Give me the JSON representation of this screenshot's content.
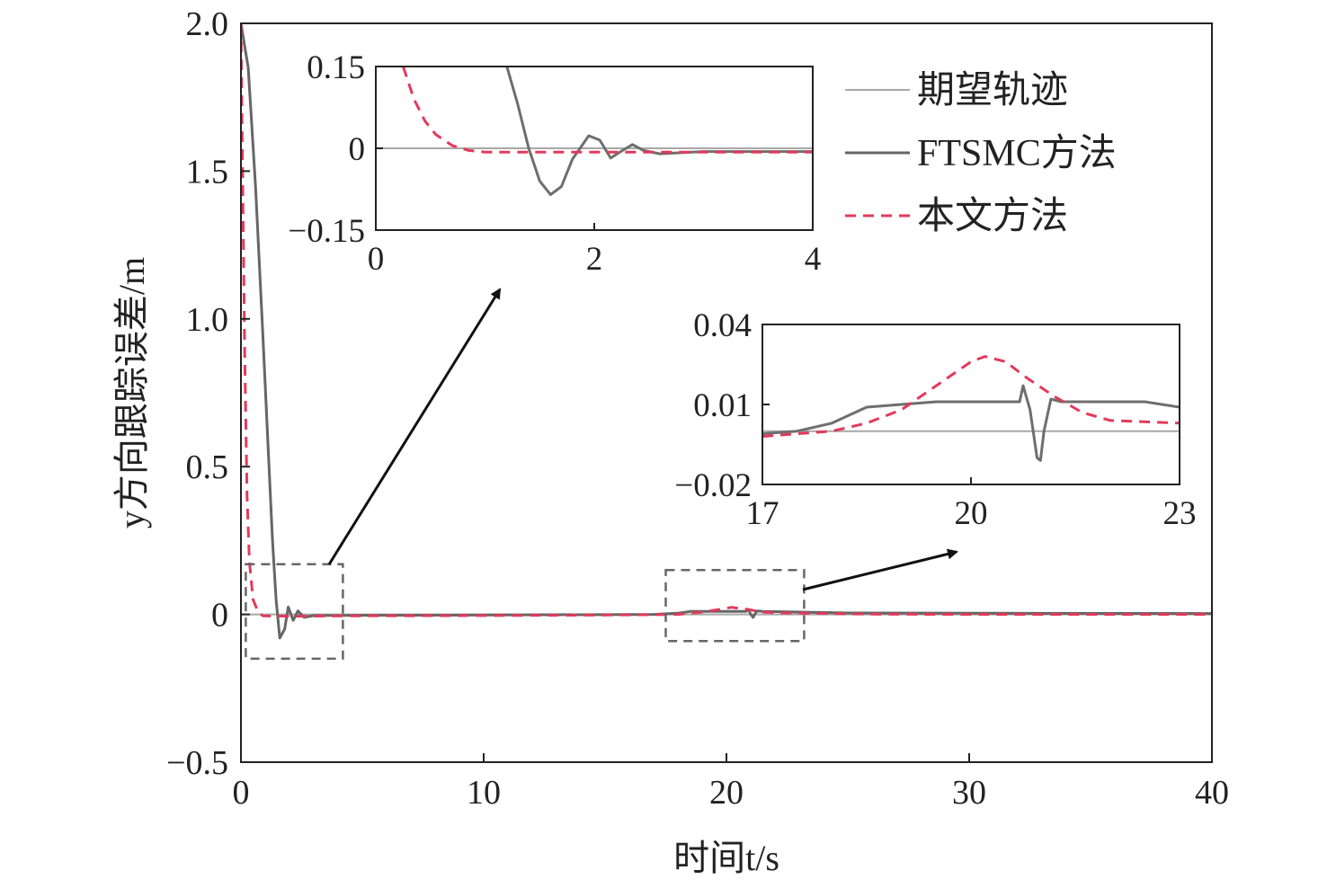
{
  "chart_data": [
    {
      "type": "line",
      "xlabel": "时间t/s",
      "ylabel": "y方向跟踪误差/m",
      "xlim": [
        0,
        40
      ],
      "ylim": [
        -0.5,
        2.0
      ],
      "xticks": [
        "0",
        "10",
        "20",
        "30",
        "40"
      ],
      "yticks": [
        "−0.5",
        "0",
        "0.5",
        "1.0",
        "1.5",
        "2.0"
      ],
      "grid": false,
      "legend_position": "top-right",
      "series": [
        {
          "name": "期望轨迹",
          "style": "solid",
          "color": "#a8a8a8",
          "points": [
            [
              0,
              0
            ],
            [
              40,
              0
            ]
          ]
        },
        {
          "name": "FTSMC方法",
          "style": "solid",
          "color": "#666666",
          "points": [
            [
              0,
              2.0
            ],
            [
              0.3,
              1.85
            ],
            [
              0.6,
              1.45
            ],
            [
              0.9,
              0.95
            ],
            [
              1.1,
              0.6
            ],
            [
              1.3,
              0.25
            ],
            [
              1.45,
              0.05
            ],
            [
              1.6,
              -0.08
            ],
            [
              1.8,
              -0.05
            ],
            [
              1.95,
              0.025
            ],
            [
              2.15,
              -0.02
            ],
            [
              2.35,
              0.012
            ],
            [
              2.6,
              -0.01
            ],
            [
              3.0,
              -0.004
            ],
            [
              5,
              -0.003
            ],
            [
              10,
              -0.002
            ],
            [
              17,
              0
            ],
            [
              18,
              0.004
            ],
            [
              18.5,
              0.01
            ],
            [
              20,
              0.01
            ],
            [
              20.8,
              0.01
            ],
            [
              20.9,
              0.017
            ],
            [
              21.0,
              0.0
            ],
            [
              21.1,
              -0.01
            ],
            [
              21.25,
              0.012
            ],
            [
              21.5,
              0.01
            ],
            [
              23,
              0.008
            ],
            [
              25,
              0.005
            ],
            [
              30,
              0.004
            ],
            [
              40,
              0.003
            ]
          ]
        },
        {
          "name": "本文方法",
          "style": "dashed",
          "color": "#e23a5a",
          "points": [
            [
              0,
              2.0
            ],
            [
              0.05,
              1.6
            ],
            [
              0.15,
              0.9
            ],
            [
              0.25,
              0.4
            ],
            [
              0.35,
              0.18
            ],
            [
              0.5,
              0.05
            ],
            [
              0.7,
              0.01
            ],
            [
              0.9,
              -0.005
            ],
            [
              2,
              -0.006
            ],
            [
              5,
              -0.005
            ],
            [
              10,
              -0.004
            ],
            [
              15,
              -0.002
            ],
            [
              17,
              -0.001
            ],
            [
              18,
              0.0
            ],
            [
              19,
              0.008
            ],
            [
              19.8,
              0.018
            ],
            [
              20.2,
              0.024
            ],
            [
              20.8,
              0.018
            ],
            [
              21.5,
              0.008
            ],
            [
              22.2,
              0.005
            ],
            [
              23,
              0.004
            ],
            [
              26,
              0.001
            ],
            [
              30,
              0.0
            ],
            [
              40,
              0.0
            ]
          ]
        }
      ],
      "highlight_boxes": [
        {
          "x": [
            0.2,
            4.2
          ],
          "y": [
            -0.15,
            0.17
          ]
        },
        {
          "x": [
            17.5,
            23.2
          ],
          "y": [
            -0.09,
            0.15
          ]
        }
      ]
    },
    {
      "type": "line",
      "role": "inset",
      "xlim": [
        0,
        4
      ],
      "ylim": [
        -0.15,
        0.15
      ],
      "xticks": [
        "0",
        "2",
        "4"
      ],
      "yticks": [
        "−0.15",
        "0",
        "0.15"
      ],
      "series": [
        {
          "name": "期望轨迹",
          "style": "solid",
          "color": "#a8a8a8",
          "points": [
            [
              0,
              0
            ],
            [
              4,
              0
            ]
          ]
        },
        {
          "name": "FTSMC方法",
          "style": "solid",
          "color": "#6e6e6e",
          "points": [
            [
              1.2,
              0.15
            ],
            [
              1.3,
              0.08
            ],
            [
              1.4,
              0.0
            ],
            [
              1.5,
              -0.06
            ],
            [
              1.6,
              -0.085
            ],
            [
              1.7,
              -0.07
            ],
            [
              1.8,
              -0.02
            ],
            [
              1.95,
              0.023
            ],
            [
              2.05,
              0.015
            ],
            [
              2.15,
              -0.018
            ],
            [
              2.25,
              -0.005
            ],
            [
              2.35,
              0.007
            ],
            [
              2.45,
              -0.004
            ],
            [
              2.6,
              -0.01
            ],
            [
              3,
              -0.006
            ],
            [
              4,
              -0.006
            ]
          ]
        },
        {
          "name": "本文方法",
          "style": "dashed",
          "color": "#e23a5a",
          "points": [
            [
              0.25,
              0.15
            ],
            [
              0.35,
              0.09
            ],
            [
              0.45,
              0.05
            ],
            [
              0.55,
              0.025
            ],
            [
              0.7,
              0.005
            ],
            [
              0.85,
              -0.004
            ],
            [
              1.0,
              -0.007
            ],
            [
              2,
              -0.007
            ],
            [
              4,
              -0.007
            ]
          ]
        }
      ]
    },
    {
      "type": "line",
      "role": "inset",
      "xlim": [
        17,
        23
      ],
      "ylim": [
        -0.02,
        0.04
      ],
      "xticks": [
        "17",
        "20",
        "23"
      ],
      "yticks": [
        "−0.02",
        "0.01",
        "0.04"
      ],
      "series": [
        {
          "name": "期望轨迹",
          "style": "solid",
          "color": "#a8a8a8",
          "points": [
            [
              17,
              0.0
            ],
            [
              23,
              0.0
            ]
          ]
        },
        {
          "name": "FTSMC方法",
          "style": "solid",
          "color": "#6e6e6e",
          "points": [
            [
              17,
              -0.001
            ],
            [
              17.5,
              0.0
            ],
            [
              18,
              0.003
            ],
            [
              18.5,
              0.009
            ],
            [
              19,
              0.01
            ],
            [
              19.5,
              0.011
            ],
            [
              20,
              0.011
            ],
            [
              20.5,
              0.011
            ],
            [
              20.7,
              0.011
            ],
            [
              20.75,
              0.017
            ],
            [
              20.85,
              0.008
            ],
            [
              20.95,
              -0.01
            ],
            [
              21.0,
              -0.011
            ],
            [
              21.05,
              0.0
            ],
            [
              21.15,
              0.012
            ],
            [
              21.3,
              0.011
            ],
            [
              22,
              0.011
            ],
            [
              22.5,
              0.011
            ],
            [
              23,
              0.009
            ]
          ]
        },
        {
          "name": "本文方法",
          "style": "dashed",
          "color": "#e23a5a",
          "points": [
            [
              17,
              -0.002
            ],
            [
              17.5,
              -0.001
            ],
            [
              18,
              0.0
            ],
            [
              18.5,
              0.003
            ],
            [
              19,
              0.008
            ],
            [
              19.5,
              0.017
            ],
            [
              20,
              0.026
            ],
            [
              20.2,
              0.028
            ],
            [
              20.5,
              0.026
            ],
            [
              20.8,
              0.02
            ],
            [
              21.2,
              0.013
            ],
            [
              21.6,
              0.007
            ],
            [
              22,
              0.004
            ],
            [
              23,
              0.003
            ]
          ]
        }
      ]
    }
  ]
}
